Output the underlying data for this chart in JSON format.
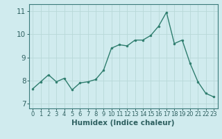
{
  "x": [
    0,
    1,
    2,
    3,
    4,
    5,
    6,
    7,
    8,
    9,
    10,
    11,
    12,
    13,
    14,
    15,
    16,
    17,
    18,
    19,
    20,
    21,
    22,
    23
  ],
  "y": [
    7.65,
    7.95,
    8.25,
    7.95,
    8.1,
    7.6,
    7.9,
    7.95,
    8.05,
    8.45,
    9.4,
    9.55,
    9.5,
    9.75,
    9.75,
    9.95,
    10.35,
    10.95,
    9.6,
    9.75,
    8.75,
    7.95,
    7.45,
    7.3
  ],
  "line_color": "#2e7d6e",
  "marker": "o",
  "marker_size": 2.0,
  "line_width": 1.0,
  "xlabel": "Humidex (Indice chaleur)",
  "ylim": [
    6.8,
    11.3
  ],
  "xlim": [
    -0.5,
    23.5
  ],
  "yticks": [
    7,
    8,
    9,
    10,
    11
  ],
  "xticks": [
    0,
    1,
    2,
    3,
    4,
    5,
    6,
    7,
    8,
    9,
    10,
    11,
    12,
    13,
    14,
    15,
    16,
    17,
    18,
    19,
    20,
    21,
    22,
    23
  ],
  "grid_color": "#b8d8d8",
  "bg_color": "#d0ebee",
  "spine_color": "#3a7a7a",
  "tick_color": "#2e6060",
  "xlabel_fontsize": 7.5,
  "ytick_fontsize": 7.5,
  "xtick_fontsize": 6.0
}
